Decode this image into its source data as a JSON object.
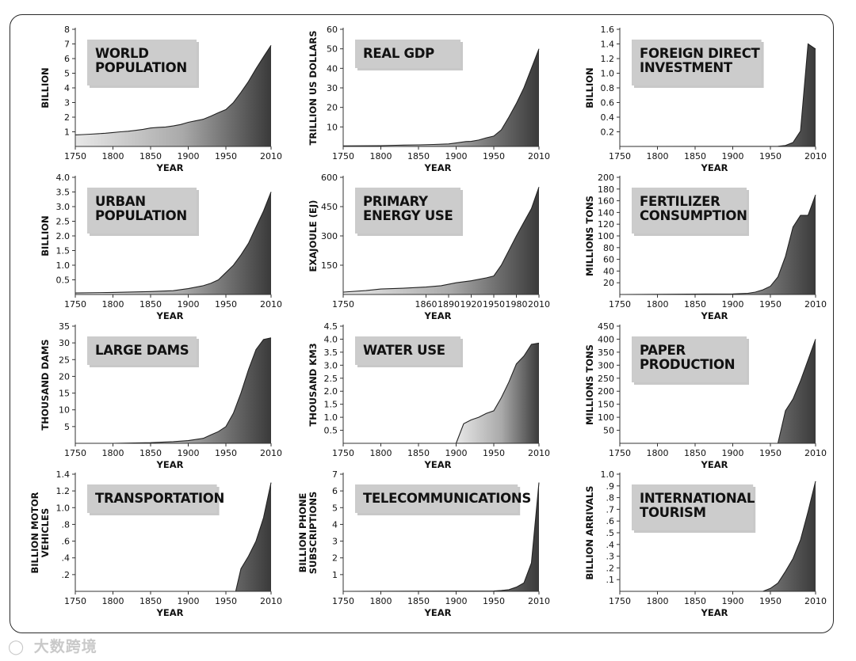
{
  "watermark": {
    "logo_icon": "wechat-logo-icon",
    "text": "大数跨境"
  },
  "chart_data": [
    {
      "type": "area",
      "title": "WORLD POPULATION",
      "title_lines": [
        "WORLD",
        "POPULATION"
      ],
      "xlabel": "YEAR",
      "ylabel_lines": [
        "BILLION"
      ],
      "ylim": [
        0,
        8
      ],
      "yticks": [
        1,
        2,
        3,
        4,
        5,
        6,
        7,
        8
      ],
      "ytick_labels": [
        "1",
        "2",
        "3",
        "4",
        "5",
        "6",
        "7",
        "8"
      ],
      "xticks": [
        1750,
        1800,
        1850,
        1900,
        1950,
        2010
      ],
      "xtick_labels": [
        "1750",
        "1800",
        "1850",
        "1900",
        "1950",
        "2010"
      ],
      "x": [
        1750,
        1760,
        1770,
        1780,
        1790,
        1800,
        1810,
        1820,
        1830,
        1840,
        1850,
        1860,
        1870,
        1880,
        1890,
        1900,
        1910,
        1920,
        1930,
        1940,
        1950,
        1960,
        1970,
        1980,
        1990,
        2000,
        2010
      ],
      "y": [
        0.79,
        0.81,
        0.84,
        0.87,
        0.9,
        0.95,
        1.0,
        1.04,
        1.1,
        1.17,
        1.26,
        1.3,
        1.33,
        1.4,
        1.5,
        1.65,
        1.75,
        1.86,
        2.07,
        2.3,
        2.52,
        3.0,
        3.69,
        4.44,
        5.31,
        6.12,
        6.9
      ]
    },
    {
      "type": "area",
      "title": "REAL GDP",
      "title_lines": [
        "REAL GDP"
      ],
      "xlabel": "YEAR",
      "ylabel_lines": [
        "TRILLION US DOLLARS"
      ],
      "ylim": [
        0,
        60
      ],
      "yticks": [
        10,
        20,
        30,
        40,
        50,
        60
      ],
      "ytick_labels": [
        "10",
        "20",
        "30",
        "40",
        "50",
        "60"
      ],
      "xticks": [
        1750,
        1800,
        1850,
        1900,
        1950,
        2010
      ],
      "xtick_labels": [
        "1750",
        "1800",
        "1850",
        "1900",
        "1950",
        "2010"
      ],
      "x": [
        1750,
        1800,
        1820,
        1850,
        1870,
        1890,
        1900,
        1913,
        1920,
        1930,
        1940,
        1950,
        1960,
        1970,
        1980,
        1990,
        2000,
        2010
      ],
      "y": [
        0.3,
        0.4,
        0.6,
        0.8,
        1.0,
        1.3,
        1.8,
        2.5,
        2.6,
        3.3,
        4.4,
        5.3,
        8.5,
        15,
        22,
        30,
        40,
        50
      ]
    },
    {
      "type": "area",
      "title": "FOREIGN DIRECT INVESTMENT",
      "title_lines": [
        "FOREIGN DIRECT",
        "INVESTMENT"
      ],
      "xlabel": "YEAR",
      "ylabel_lines": [
        "BILLION"
      ],
      "ylim": [
        0,
        1.6
      ],
      "yticks": [
        0.2,
        0.4,
        0.6,
        0.8,
        1.0,
        1.2,
        1.4,
        1.6
      ],
      "ytick_labels": [
        "0.2",
        "0.4",
        "0.6",
        "0.8",
        "1.0",
        "1.2",
        "1.4",
        "1.6"
      ],
      "xticks": [
        1750,
        1800,
        1850,
        1900,
        1950,
        2010
      ],
      "xtick_labels": [
        "1750",
        "1800",
        "1850",
        "1900",
        "1950",
        "2010"
      ],
      "x": [
        1750,
        1960,
        1970,
        1980,
        1990,
        2000,
        2010
      ],
      "y": [
        0,
        0.002,
        0.013,
        0.054,
        0.21,
        1.4,
        1.33
      ]
    },
    {
      "type": "area",
      "title": "URBAN POPULATION",
      "title_lines": [
        "URBAN",
        "POPULATION"
      ],
      "xlabel": "YEAR",
      "ylabel_lines": [
        "BILLION"
      ],
      "ylim": [
        0,
        4.0
      ],
      "yticks": [
        0.5,
        1.0,
        1.5,
        2.0,
        2.5,
        3.0,
        3.5,
        4.0
      ],
      "ytick_labels": [
        "0.5",
        "1.0",
        "1.5",
        "2.0",
        "2.5",
        "3.0",
        "3.5",
        "4.0"
      ],
      "xticks": [
        1750,
        1800,
        1850,
        1900,
        1950,
        2010
      ],
      "xtick_labels": [
        "1750",
        "1800",
        "1850",
        "1900",
        "1950",
        "2010"
      ],
      "x": [
        1750,
        1800,
        1850,
        1880,
        1900,
        1920,
        1930,
        1940,
        1950,
        1960,
        1970,
        1980,
        1990,
        2000,
        2010
      ],
      "y": [
        0.05,
        0.07,
        0.1,
        0.13,
        0.2,
        0.3,
        0.38,
        0.5,
        0.75,
        1.0,
        1.35,
        1.75,
        2.3,
        2.85,
        3.5
      ]
    },
    {
      "type": "area",
      "title": "PRIMARY ENERGY USE",
      "title_lines": [
        "PRIMARY",
        "ENERGY USE"
      ],
      "xlabel": "YEAR",
      "ylabel_lines": [
        "EXAJOULE (EJ)"
      ],
      "ylim": [
        0,
        600
      ],
      "yticks": [
        150,
        300,
        450,
        600
      ],
      "ytick_labels": [
        "150",
        "300",
        "450",
        "600"
      ],
      "xticks": [
        1750,
        1860,
        1890,
        1920,
        1950,
        1980,
        2010
      ],
      "xtick_labels": [
        "1750",
        "1860",
        "1890",
        "1920",
        "1950",
        "1980",
        "2010"
      ],
      "x": [
        1750,
        1780,
        1800,
        1830,
        1860,
        1880,
        1900,
        1920,
        1940,
        1950,
        1960,
        1970,
        1980,
        1990,
        2000,
        2010
      ],
      "y": [
        12,
        20,
        28,
        32,
        38,
        45,
        60,
        70,
        85,
        95,
        150,
        225,
        300,
        370,
        440,
        550
      ]
    },
    {
      "type": "area",
      "title": "FERTILIZER CONSUMPTION",
      "title_lines": [
        "FERTILIZER",
        "CONSUMPTION"
      ],
      "xlabel": "YEAR",
      "ylabel_lines": [
        "MILLIONS TONS"
      ],
      "ylim": [
        0,
        200
      ],
      "yticks": [
        20,
        40,
        60,
        80,
        100,
        120,
        140,
        160,
        180,
        200
      ],
      "ytick_labels": [
        "20",
        "40",
        "60",
        "80",
        "100",
        "120",
        "140",
        "160",
        "180",
        "200"
      ],
      "xticks": [
        1750,
        1800,
        1850,
        1900,
        1950,
        2010
      ],
      "xtick_labels": [
        "1750",
        "1800",
        "1850",
        "1900",
        "1950",
        "2010"
      ],
      "x": [
        1750,
        1900,
        1920,
        1930,
        1940,
        1950,
        1960,
        1970,
        1980,
        1990,
        2000,
        2010
      ],
      "y": [
        0,
        1,
        2,
        4,
        8,
        14,
        30,
        65,
        115,
        135,
        135,
        170
      ]
    },
    {
      "type": "area",
      "title": "LARGE DAMS",
      "title_lines": [
        "LARGE DAMS"
      ],
      "xlabel": "YEAR",
      "ylabel_lines": [
        "THOUSAND DAMS"
      ],
      "ylim": [
        0,
        35
      ],
      "yticks": [
        5,
        10,
        15,
        20,
        25,
        30,
        35
      ],
      "ytick_labels": [
        "5",
        "10",
        "15",
        "20",
        "25",
        "30",
        "35"
      ],
      "xticks": [
        1750,
        1800,
        1850,
        1900,
        1950,
        2010
      ],
      "xtick_labels": [
        "1750",
        "1800",
        "1850",
        "1900",
        "1950",
        "2010"
      ],
      "x": [
        1750,
        1800,
        1850,
        1880,
        1900,
        1920,
        1930,
        1940,
        1950,
        1960,
        1970,
        1980,
        1990,
        2000,
        2010
      ],
      "y": [
        0,
        0,
        0.2,
        0.5,
        0.8,
        1.5,
        2.5,
        3.5,
        5.0,
        9.0,
        15,
        22,
        28,
        31,
        31.5
      ]
    },
    {
      "type": "area",
      "title": "WATER USE",
      "title_lines": [
        "WATER USE"
      ],
      "xlabel": "YEAR",
      "ylabel_lines": [
        "THOUSAND KM3"
      ],
      "ylim": [
        0,
        4.5
      ],
      "yticks": [
        0.5,
        1.0,
        1.5,
        2.0,
        2.5,
        3.0,
        3.5,
        4.0,
        4.5
      ],
      "ytick_labels": [
        "0.5",
        "1.0",
        "1.5",
        "2.0",
        "2.5",
        "3.0",
        "3.5",
        "4.0",
        "4.5"
      ],
      "xticks": [
        1750,
        1800,
        1850,
        1900,
        1950,
        2010
      ],
      "xtick_labels": [
        "1750",
        "1800",
        "1850",
        "1900",
        "1950",
        "2010"
      ],
      "x": [
        1900,
        1910,
        1920,
        1930,
        1940,
        1950,
        1960,
        1970,
        1980,
        1990,
        2000,
        2010
      ],
      "y": [
        0,
        0.75,
        0.9,
        1.0,
        1.15,
        1.25,
        1.75,
        2.35,
        3.05,
        3.35,
        3.8,
        3.85
      ]
    },
    {
      "type": "area",
      "title": "PAPER PRODUCTION",
      "title_lines": [
        "PAPER",
        "PRODUCTION"
      ],
      "xlabel": "YEAR",
      "ylabel_lines": [
        "MILLIONS TONS"
      ],
      "ylim": [
        0,
        450
      ],
      "yticks": [
        50,
        100,
        150,
        200,
        250,
        300,
        350,
        400,
        450
      ],
      "ytick_labels": [
        "50",
        "100",
        "150",
        "200",
        "250",
        "300",
        "350",
        "400",
        "450"
      ],
      "xticks": [
        1750,
        1800,
        1850,
        1900,
        1950,
        2010
      ],
      "xtick_labels": [
        "1750",
        "1800",
        "1850",
        "1900",
        "1950",
        "2010"
      ],
      "x": [
        1750,
        1960,
        1970,
        1980,
        1990,
        2000,
        2010
      ],
      "y": [
        0,
        0,
        125,
        170,
        240,
        320,
        400
      ]
    },
    {
      "type": "area",
      "title": "TRANSPORTATION",
      "title_lines": [
        "TRANSPORTATION"
      ],
      "xlabel": "YEAR",
      "ylabel_lines": [
        "BILLION MOTOR",
        "VEHICLES"
      ],
      "ylim": [
        0,
        1.4
      ],
      "yticks": [
        0.2,
        0.4,
        0.6,
        0.8,
        1.0,
        1.2,
        1.4
      ],
      "ytick_labels": [
        ".2",
        ".4",
        ".6",
        ".8",
        "1.0",
        "1.2",
        "1.4"
      ],
      "xticks": [
        1750,
        1800,
        1850,
        1900,
        1950,
        2010
      ],
      "xtick_labels": [
        "1750",
        "1800",
        "1850",
        "1900",
        "1950",
        "2010"
      ],
      "x": [
        1750,
        1963,
        1970,
        1980,
        1990,
        2000,
        2010
      ],
      "y": [
        0,
        0,
        0.27,
        0.42,
        0.6,
        0.88,
        1.3
      ]
    },
    {
      "type": "area",
      "title": "TELECOMMUNICATIONS",
      "title_lines": [
        "TELECOMMUNICATIONS"
      ],
      "xlabel": "YEAR",
      "ylabel_lines": [
        "BILLION PHONE",
        "SUBSCRIPTIONS"
      ],
      "ylim": [
        0,
        7
      ],
      "yticks": [
        1,
        2,
        3,
        4,
        5,
        6,
        7
      ],
      "ytick_labels": [
        "1",
        "2",
        "3",
        "4",
        "5",
        "6",
        "7"
      ],
      "xticks": [
        1750,
        1800,
        1850,
        1900,
        1950,
        2010
      ],
      "xtick_labels": [
        "1750",
        "1800",
        "1850",
        "1900",
        "1950",
        "2010"
      ],
      "x": [
        1750,
        1950,
        1960,
        1970,
        1980,
        1990,
        2000,
        2010
      ],
      "y": [
        0,
        0.02,
        0.05,
        0.1,
        0.25,
        0.5,
        1.7,
        6.5
      ]
    },
    {
      "type": "area",
      "title": "INTERNATIONAL TOURISM",
      "title_lines": [
        "INTERNATIONAL",
        "TOURISM"
      ],
      "xlabel": "YEAR",
      "ylabel_lines": [
        "Billion Arrivals"
      ],
      "ylim": [
        0,
        1.0
      ],
      "yticks": [
        0.1,
        0.2,
        0.3,
        0.4,
        0.5,
        0.6,
        0.7,
        0.8,
        0.9,
        1.0
      ],
      "ytick_labels": [
        ".1",
        ".2",
        ".3",
        ".4",
        ".5",
        ".6",
        ".7",
        ".8",
        ".9",
        "1.0"
      ],
      "xticks": [
        1750,
        1800,
        1850,
        1900,
        1950,
        2010
      ],
      "xtick_labels": [
        "1750",
        "1800",
        "1850",
        "1900",
        "1950",
        "2010"
      ],
      "x": [
        1750,
        1940,
        1950,
        1960,
        1970,
        1980,
        1990,
        2000,
        2010
      ],
      "y": [
        0,
        0,
        0.025,
        0.07,
        0.17,
        0.28,
        0.44,
        0.68,
        0.94
      ]
    }
  ]
}
